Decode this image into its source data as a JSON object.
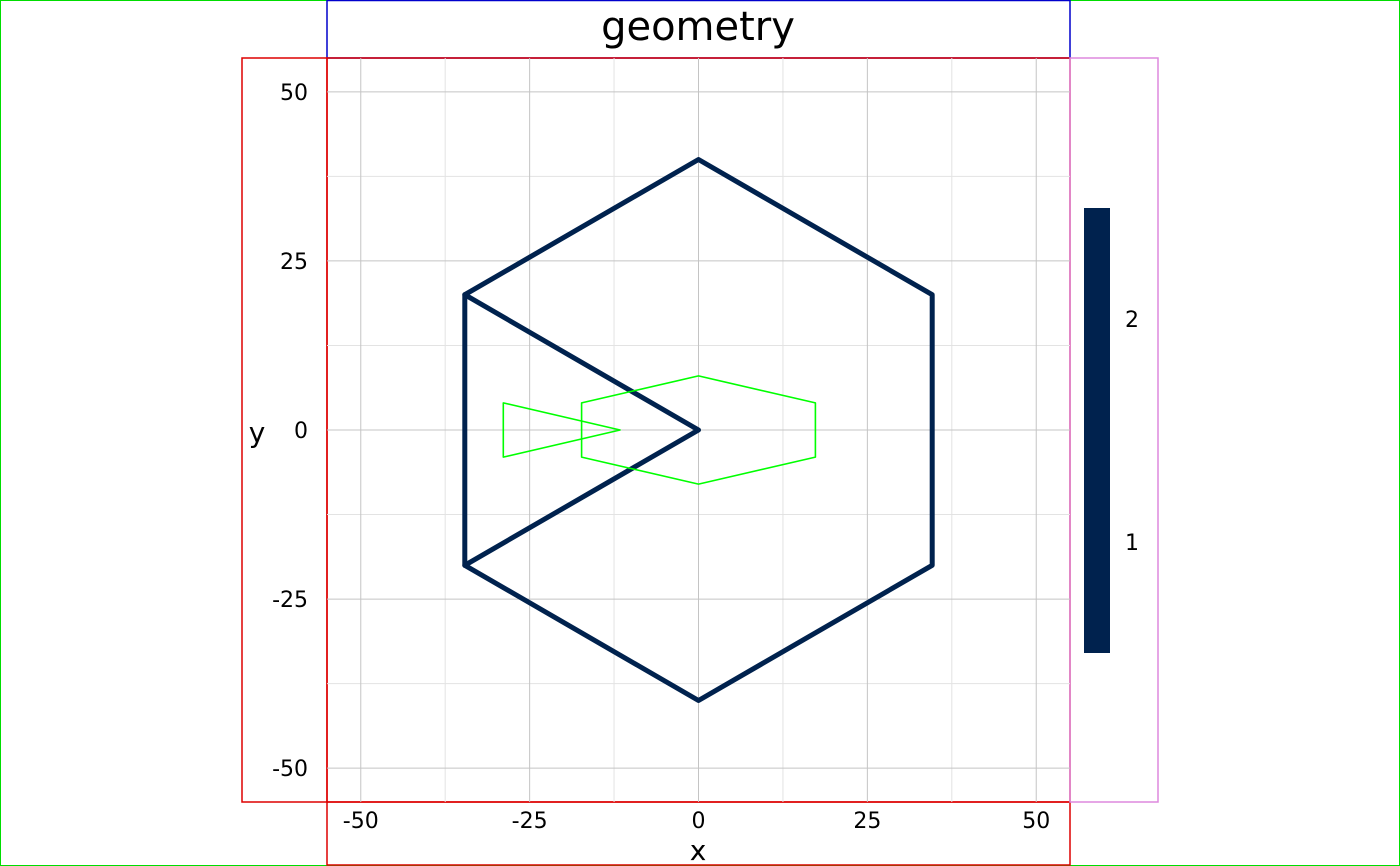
{
  "chart_data": {
    "type": "line",
    "title": "geometry",
    "xlabel": "x",
    "ylabel": "y",
    "xlim": [
      -55,
      55
    ],
    "ylim": [
      -55,
      55
    ],
    "x_ticks": [
      -50,
      -25,
      0,
      25,
      50
    ],
    "y_ticks": [
      -50,
      -25,
      0,
      25,
      50
    ],
    "x_tick_labels": [
      "-50",
      "-25",
      "0",
      "25",
      "50"
    ],
    "y_tick_labels": [
      "-50",
      "-25",
      "0",
      "25",
      "50"
    ],
    "grid": true,
    "legend_position": "right",
    "colorbar": {
      "color": "#00224e",
      "tick_labels": [
        "2",
        "1"
      ]
    },
    "series": [
      {
        "stroke": "#00224e",
        "shape": "polyline",
        "points": [
          [
            0,
            0
          ],
          [
            -34.6,
            20
          ],
          [
            0,
            40
          ],
          [
            34.6,
            20
          ],
          [
            34.6,
            -20
          ],
          [
            0,
            -40
          ],
          [
            -34.6,
            -20
          ],
          [
            0,
            0
          ]
        ]
      },
      {
        "stroke": "#00224e",
        "shape": "polyline",
        "points": [
          [
            -34.6,
            20
          ],
          [
            -34.6,
            -20
          ]
        ]
      },
      {
        "stroke": "#00ff00",
        "shape": "polygon",
        "points": [
          [
            0,
            8
          ],
          [
            17.3,
            4
          ],
          [
            17.3,
            -4
          ],
          [
            0,
            -8
          ],
          [
            -17.3,
            -4
          ],
          [
            -17.3,
            4
          ]
        ]
      },
      {
        "stroke": "#00ff00",
        "shape": "polygon",
        "points": [
          [
            -28.9,
            4
          ],
          [
            -11.6,
            0
          ],
          [
            -28.9,
            -4
          ]
        ]
      }
    ],
    "frame_colors": {
      "outer": "#00dd00",
      "title": "#0000cc",
      "axes": "#dd0000",
      "legend": "#dd88dd"
    }
  }
}
